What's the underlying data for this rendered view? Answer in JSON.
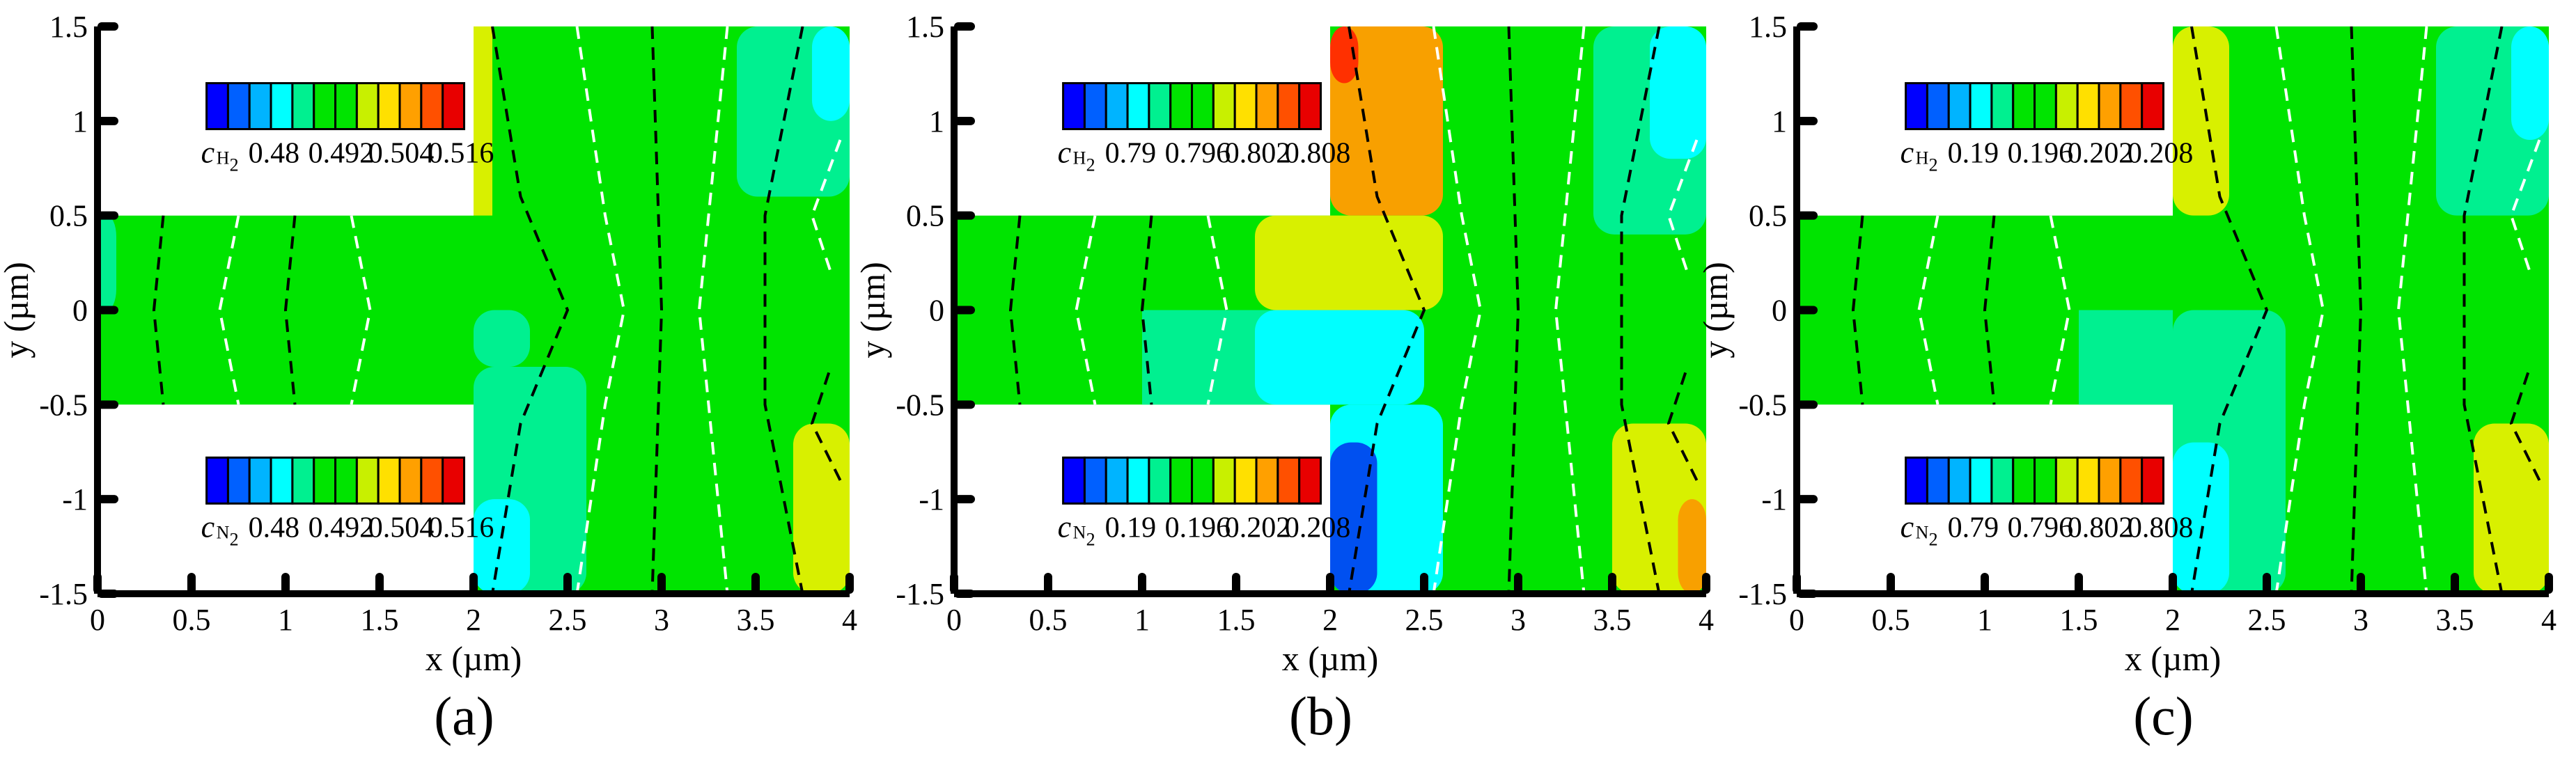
{
  "colors": {
    "cyan": "#00ffff",
    "aquamarine": "#00f090",
    "green": "#00e400",
    "yellow": "#d8f000",
    "orange": "#f8a000",
    "red": "#ff3000",
    "blue": "#0050f0",
    "dash_black": "#000000",
    "dash_white": "#ffffff",
    "colormap": [
      "#0000ff",
      "#0060ff",
      "#00b4ff",
      "#00ffff",
      "#00f090",
      "#00e400",
      "#00e400",
      "#c8f000",
      "#ffe000",
      "#ffa000",
      "#ff5000",
      "#e80000"
    ]
  },
  "chart_data": [
    {
      "panel": "(a)",
      "type": "heatmap",
      "xlabel": "x (µm)",
      "ylabel": "y (µm)",
      "xlim": [
        0,
        4
      ],
      "ylim": [
        -1.5,
        1.5
      ],
      "xticks": [
        "0",
        "0.5",
        "1",
        "1.5",
        "2",
        "2.5",
        "3",
        "3.5",
        "4"
      ],
      "yticks": [
        "-1.5",
        "-1",
        "-0.5",
        "0",
        "0.5",
        "1",
        "1.5"
      ],
      "geometry": "cross-shaped channel: left inlet y in [-0.5, 0.5] for x in [0, 2]; vertical channel y in [-1.5, 1.5] for x in [2, 4]",
      "colorbars": [
        {
          "position": "upper",
          "species": "H",
          "subscript": "2",
          "labels": [
            "0.48",
            "0.492",
            "0.504",
            "0.516"
          ]
        },
        {
          "position": "lower",
          "species": "N",
          "subscript": "2",
          "labels": [
            "0.48",
            "0.492",
            "0.504",
            "0.516"
          ]
        }
      ],
      "regions": [
        {
          "x": [
            0,
            2
          ],
          "y": [
            0,
            0.5
          ],
          "color": "green"
        },
        {
          "x": [
            0,
            2
          ],
          "y": [
            -0.5,
            0
          ],
          "color": "green"
        },
        {
          "x": [
            2,
            4
          ],
          "y": [
            0,
            1.5
          ],
          "color": "green"
        },
        {
          "x": [
            2,
            4
          ],
          "y": [
            -1.5,
            0
          ],
          "color": "green"
        },
        {
          "x": [
            2,
            2.1
          ],
          "y": [
            0.5,
            1.5
          ],
          "color": "yellow"
        },
        {
          "x": [
            0,
            0.1
          ],
          "y": [
            0,
            0.5
          ],
          "color": "aquamarine"
        },
        {
          "x": [
            2,
            2.3
          ],
          "y": [
            0,
            -0.3
          ],
          "color": "aquamarine"
        },
        {
          "x": [
            2,
            2.6
          ],
          "y": [
            -0.3,
            -1.5
          ],
          "color": "aquamarine"
        },
        {
          "x": [
            2,
            2.3
          ],
          "y": [
            -1.0,
            -1.5
          ],
          "color": "cyan"
        },
        {
          "x": [
            3.4,
            4
          ],
          "y": [
            0.6,
            1.5
          ],
          "color": "aquamarine"
        },
        {
          "x": [
            3.8,
            4
          ],
          "y": [
            1.0,
            1.5
          ],
          "color": "cyan"
        },
        {
          "x": [
            3.7,
            4
          ],
          "y": [
            -0.6,
            -1.5
          ],
          "color": "yellow"
        }
      ]
    },
    {
      "panel": "(b)",
      "type": "heatmap",
      "xlabel": "x (µm)",
      "ylabel": "y (µm)",
      "xlim": [
        0,
        4
      ],
      "ylim": [
        -1.5,
        1.5
      ],
      "xticks": [
        "0",
        "0.5",
        "1",
        "1.5",
        "2",
        "2.5",
        "3",
        "3.5",
        "4"
      ],
      "yticks": [
        "-1.5",
        "-1",
        "-0.5",
        "0",
        "0.5",
        "1",
        "1.5"
      ],
      "geometry": "cross-shaped channel: left inlet y in [-0.5, 0.5] for x in [0, 2]; vertical channel y in [-1.5, 1.5] for x in [2, 4]",
      "colorbars": [
        {
          "position": "upper",
          "species": "H",
          "subscript": "2",
          "labels": [
            "0.79",
            "0.796",
            "0.802",
            "0.808"
          ]
        },
        {
          "position": "lower",
          "species": "N",
          "subscript": "2",
          "labels": [
            "0.19",
            "0.196",
            "0.202",
            "0.208"
          ]
        }
      ],
      "regions": [
        {
          "x": [
            0,
            2
          ],
          "y": [
            0,
            0.5
          ],
          "color": "green"
        },
        {
          "x": [
            0,
            2
          ],
          "y": [
            -0.5,
            0
          ],
          "color": "green"
        },
        {
          "x": [
            1.0,
            2
          ],
          "y": [
            -0.5,
            0
          ],
          "color": "aquamarine"
        },
        {
          "x": [
            2,
            4
          ],
          "y": [
            0,
            1.5
          ],
          "color": "green"
        },
        {
          "x": [
            2,
            4
          ],
          "y": [
            -1.5,
            0
          ],
          "color": "green"
        },
        {
          "x": [
            1.6,
            2.6
          ],
          "y": [
            0,
            0.5
          ],
          "color": "yellow"
        },
        {
          "x": [
            2,
            2.6
          ],
          "y": [
            0.5,
            1.5
          ],
          "color": "orange"
        },
        {
          "x": [
            2,
            2.15
          ],
          "y": [
            1.2,
            1.5
          ],
          "color": "red"
        },
        {
          "x": [
            1.6,
            2.5
          ],
          "y": [
            0,
            -0.5
          ],
          "color": "cyan"
        },
        {
          "x": [
            2,
            2.6
          ],
          "y": [
            -0.5,
            -1.5
          ],
          "color": "cyan"
        },
        {
          "x": [
            2,
            2.25
          ],
          "y": [
            -0.7,
            -1.5
          ],
          "color": "blue"
        },
        {
          "x": [
            3.4,
            4
          ],
          "y": [
            0.4,
            1.5
          ],
          "color": "aquamarine"
        },
        {
          "x": [
            3.7,
            4
          ],
          "y": [
            0.8,
            1.5
          ],
          "color": "cyan"
        },
        {
          "x": [
            3.5,
            4
          ],
          "y": [
            -0.6,
            -1.5
          ],
          "color": "yellow"
        },
        {
          "x": [
            3.85,
            4
          ],
          "y": [
            -1.0,
            -1.5
          ],
          "color": "orange"
        }
      ]
    },
    {
      "panel": "(c)",
      "type": "heatmap",
      "xlabel": "x (µm)",
      "ylabel": "y (µm)",
      "xlim": [
        0,
        4
      ],
      "ylim": [
        -1.5,
        1.5
      ],
      "xticks": [
        "0",
        "0.5",
        "1",
        "1.5",
        "2",
        "2.5",
        "3",
        "3.5",
        "4"
      ],
      "yticks": [
        "-1.5",
        "-1",
        "-0.5",
        "0",
        "0.5",
        "1",
        "1.5"
      ],
      "geometry": "cross-shaped channel: left inlet y in [-0.5, 0.5] for x in [0, 2]; vertical channel y in [-1.5, 1.5] for x in [2, 4]",
      "colorbars": [
        {
          "position": "upper",
          "species": "H",
          "subscript": "2",
          "labels": [
            "0.19",
            "0.196",
            "0.202",
            "0.208"
          ]
        },
        {
          "position": "lower",
          "species": "N",
          "subscript": "2",
          "labels": [
            "0.79",
            "0.796",
            "0.802",
            "0.808"
          ]
        }
      ],
      "regions": [
        {
          "x": [
            0,
            2
          ],
          "y": [
            0,
            0.5
          ],
          "color": "green"
        },
        {
          "x": [
            0,
            2
          ],
          "y": [
            -0.5,
            0
          ],
          "color": "green"
        },
        {
          "x": [
            1.5,
            2
          ],
          "y": [
            -0.5,
            0
          ],
          "color": "aquamarine"
        },
        {
          "x": [
            2,
            4
          ],
          "y": [
            0,
            1.5
          ],
          "color": "green"
        },
        {
          "x": [
            2,
            4
          ],
          "y": [
            -1.5,
            0
          ],
          "color": "green"
        },
        {
          "x": [
            2,
            2.3
          ],
          "y": [
            0.5,
            1.5
          ],
          "color": "yellow"
        },
        {
          "x": [
            2,
            2.6
          ],
          "y": [
            0,
            -1.5
          ],
          "color": "aquamarine"
        },
        {
          "x": [
            2,
            2.3
          ],
          "y": [
            -0.7,
            -1.5
          ],
          "color": "cyan"
        },
        {
          "x": [
            3.4,
            4
          ],
          "y": [
            0.5,
            1.5
          ],
          "color": "aquamarine"
        },
        {
          "x": [
            3.8,
            4
          ],
          "y": [
            0.9,
            1.5
          ],
          "color": "cyan"
        },
        {
          "x": [
            3.6,
            4
          ],
          "y": [
            -0.6,
            -1.5
          ],
          "color": "yellow"
        }
      ]
    }
  ]
}
